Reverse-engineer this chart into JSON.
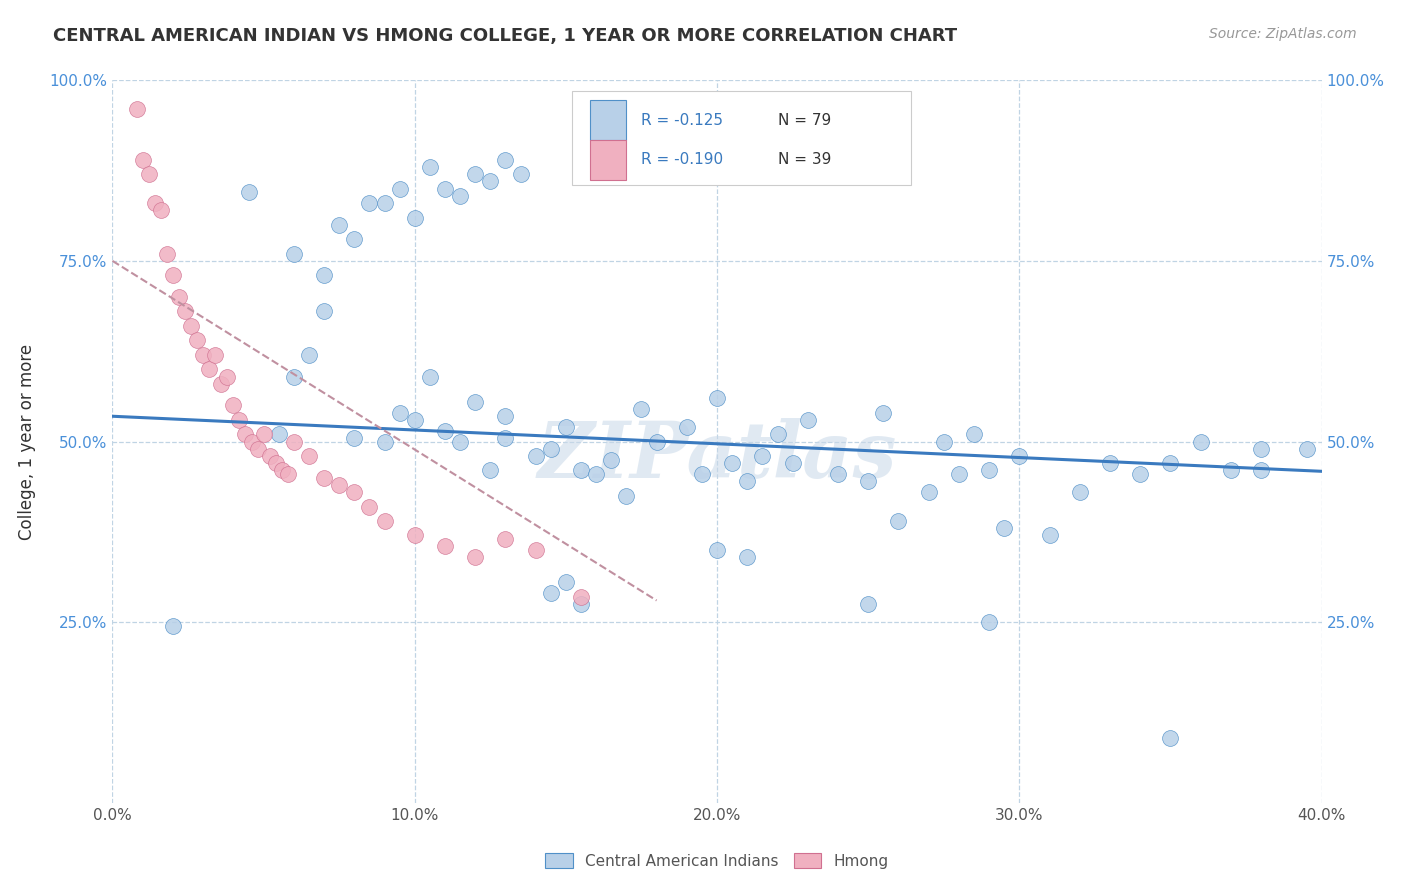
{
  "title": "CENTRAL AMERICAN INDIAN VS HMONG COLLEGE, 1 YEAR OR MORE CORRELATION CHART",
  "source": "Source: ZipAtlas.com",
  "ylabel": "College, 1 year or more",
  "xlim": [
    0.0,
    0.4
  ],
  "ylim": [
    0.0,
    1.0
  ],
  "legend_r1": "-0.125",
  "legend_n1": "79",
  "legend_r2": "-0.190",
  "legend_n2": "39",
  "color_blue": "#b8d0e8",
  "color_pink": "#f0b0c0",
  "edge_blue": "#5090c8",
  "edge_pink": "#d07090",
  "trend_blue_color": "#3a7abf",
  "trend_pink_color": "#c090a0",
  "background_color": "#ffffff",
  "grid_color": "#c0d4e4",
  "watermark": "ZIPatlas",
  "blue_x": [
    0.02,
    0.045,
    0.055,
    0.06,
    0.065,
    0.07,
    0.08,
    0.09,
    0.095,
    0.1,
    0.105,
    0.11,
    0.115,
    0.12,
    0.125,
    0.13,
    0.13,
    0.14,
    0.145,
    0.15,
    0.155,
    0.16,
    0.165,
    0.17,
    0.175,
    0.18,
    0.19,
    0.195,
    0.2,
    0.205,
    0.21,
    0.215,
    0.22,
    0.225,
    0.23,
    0.24,
    0.25,
    0.255,
    0.26,
    0.27,
    0.275,
    0.28,
    0.285,
    0.29,
    0.295,
    0.3,
    0.31,
    0.32,
    0.33,
    0.34,
    0.35,
    0.36,
    0.37,
    0.38,
    0.395,
    0.06,
    0.07,
    0.075,
    0.08,
    0.085,
    0.09,
    0.095,
    0.1,
    0.105,
    0.11,
    0.115,
    0.12,
    0.125,
    0.13,
    0.135,
    0.145,
    0.15,
    0.155,
    0.2,
    0.21,
    0.25,
    0.29,
    0.35,
    0.38
  ],
  "blue_y": [
    0.245,
    0.845,
    0.51,
    0.59,
    0.62,
    0.68,
    0.505,
    0.5,
    0.54,
    0.53,
    0.59,
    0.515,
    0.5,
    0.555,
    0.46,
    0.535,
    0.505,
    0.48,
    0.49,
    0.52,
    0.46,
    0.455,
    0.475,
    0.425,
    0.545,
    0.5,
    0.52,
    0.455,
    0.56,
    0.47,
    0.445,
    0.48,
    0.51,
    0.47,
    0.53,
    0.455,
    0.445,
    0.54,
    0.39,
    0.43,
    0.5,
    0.455,
    0.51,
    0.46,
    0.38,
    0.48,
    0.37,
    0.43,
    0.47,
    0.455,
    0.47,
    0.5,
    0.46,
    0.46,
    0.49,
    0.76,
    0.73,
    0.8,
    0.78,
    0.83,
    0.83,
    0.85,
    0.81,
    0.88,
    0.85,
    0.84,
    0.87,
    0.86,
    0.89,
    0.87,
    0.29,
    0.305,
    0.275,
    0.35,
    0.34,
    0.275,
    0.25,
    0.09,
    0.49
  ],
  "pink_x": [
    0.008,
    0.01,
    0.012,
    0.014,
    0.016,
    0.018,
    0.02,
    0.022,
    0.024,
    0.026,
    0.028,
    0.03,
    0.032,
    0.034,
    0.036,
    0.038,
    0.04,
    0.042,
    0.044,
    0.046,
    0.048,
    0.05,
    0.052,
    0.054,
    0.056,
    0.058,
    0.06,
    0.065,
    0.07,
    0.075,
    0.08,
    0.085,
    0.09,
    0.1,
    0.11,
    0.12,
    0.13,
    0.14,
    0.155
  ],
  "pink_y": [
    0.96,
    0.89,
    0.87,
    0.83,
    0.82,
    0.76,
    0.73,
    0.7,
    0.68,
    0.66,
    0.64,
    0.62,
    0.6,
    0.62,
    0.58,
    0.59,
    0.55,
    0.53,
    0.51,
    0.5,
    0.49,
    0.51,
    0.48,
    0.47,
    0.46,
    0.455,
    0.5,
    0.48,
    0.45,
    0.44,
    0.43,
    0.41,
    0.39,
    0.37,
    0.355,
    0.34,
    0.365,
    0.35,
    0.285
  ]
}
